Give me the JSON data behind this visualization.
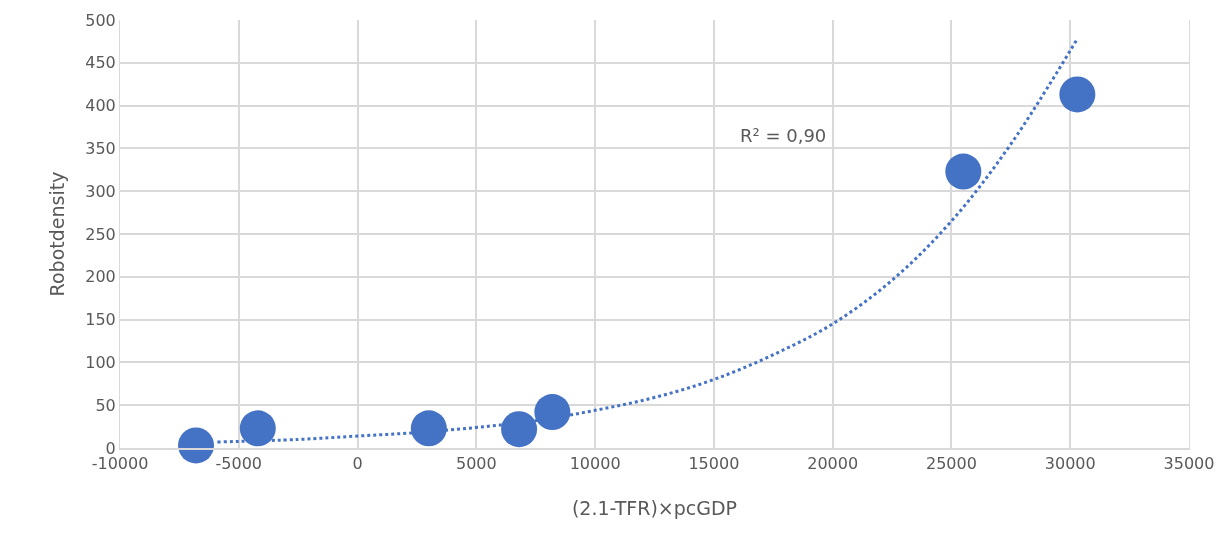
{
  "chart_data": {
    "type": "scatter",
    "xlabel": "(2.1-TFR)×pcGDP",
    "ylabel": "Robotdensity",
    "series": [
      {
        "color": "#4472c4",
        "marker": "circle",
        "x": [
          -6800,
          -4200,
          3000,
          6800,
          8200,
          25500,
          30300
        ],
        "values": [
          3,
          23,
          23,
          22,
          42,
          323,
          413
        ]
      },
      {
        "type": "line",
        "color": "#4472c4",
        "line_style": "dotted",
        "marker": "none",
        "x": [
          -5900,
          -2500,
          0,
          2500,
          5000,
          7500,
          10000,
          12500,
          15000,
          17500,
          20000,
          22500,
          25000,
          27500,
          30300
        ],
        "values": [
          7,
          10,
          14,
          18,
          24,
          32,
          44,
          59,
          80,
          109,
          145,
          196,
          265,
          355,
          478
        ]
      }
    ],
    "annotations": [
      "R² = 0,90"
    ],
    "xlim": [
      -10000,
      35000
    ],
    "xticks": [
      -10000,
      -5000,
      0,
      5000,
      10000,
      15000,
      20000,
      25000,
      30000,
      35000
    ],
    "ylim": [
      0,
      500
    ],
    "yticks": [
      0,
      50,
      100,
      150,
      200,
      250,
      300,
      350,
      400,
      450,
      500
    ],
    "grid": true,
    "legend": false
  }
}
